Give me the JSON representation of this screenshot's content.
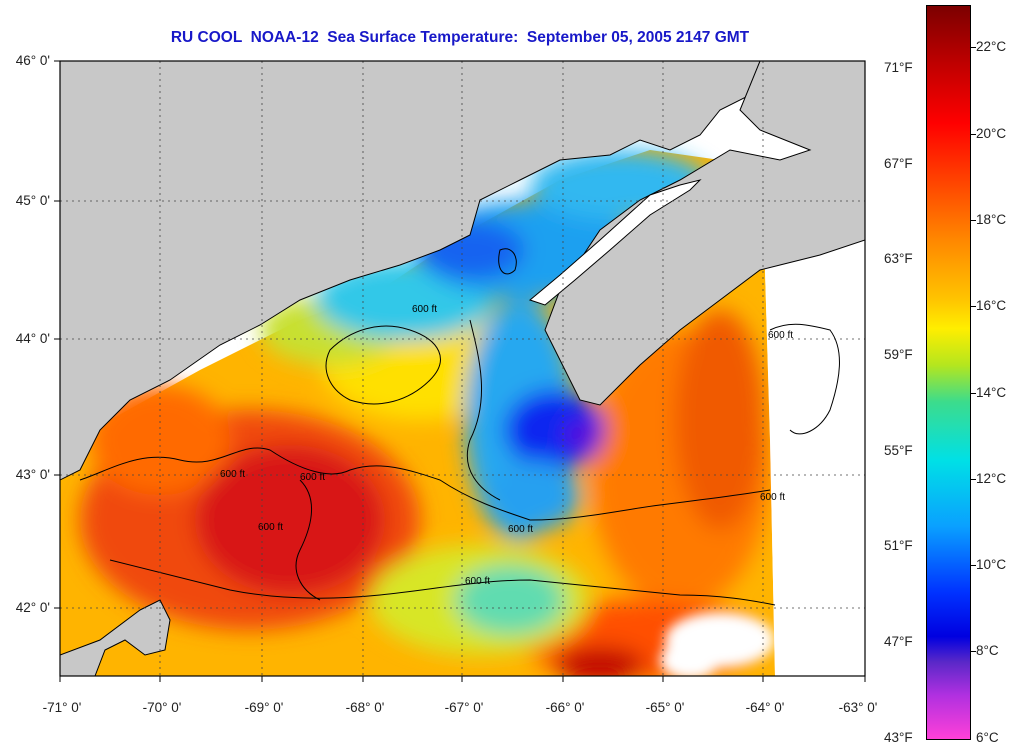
{
  "title": "RU COOL  NOAA-12  Sea Surface Temperature:  September 05, 2005 2147 GMT",
  "latitude_labels": [
    "46° 0'",
    "45° 0'",
    "44° 0'",
    "43° 0'",
    "42° 0'"
  ],
  "longitude_labels": [
    "-71° 0'",
    "-70° 0'",
    "-69° 0'",
    "-68° 0'",
    "-67° 0'",
    "-66° 0'",
    "-65° 0'",
    "-64° 0'",
    "-63° 0'"
  ],
  "colorbar_celsius": [
    "22°C",
    "20°C",
    "18°C",
    "16°C",
    "14°C",
    "12°C",
    "10°C",
    "8°C",
    "6°C"
  ],
  "colorbar_fahrenheit": [
    "71°F",
    "67°F",
    "63°F",
    "59°F",
    "55°F",
    "51°F",
    "47°F",
    "43°F"
  ],
  "contour_label": "600 ft",
  "colors": {
    "land": "#c8c8c8",
    "title": "#1818c8",
    "cold": "#0000e0",
    "warm": "#e01000"
  }
}
